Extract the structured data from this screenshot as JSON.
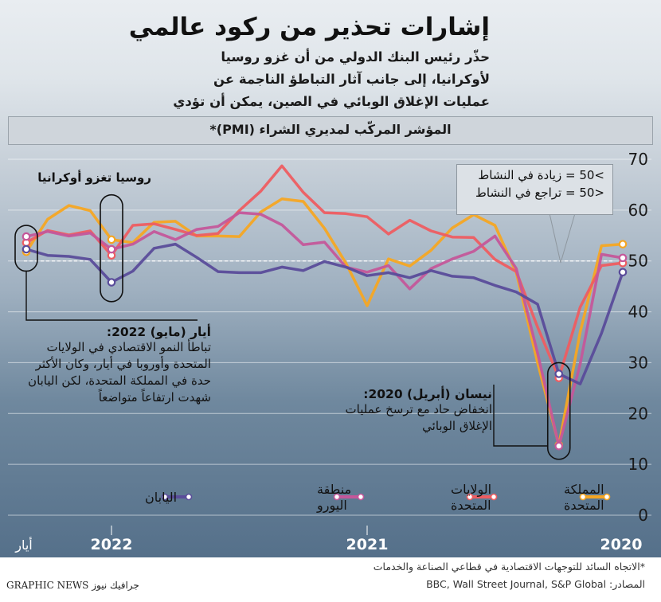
{
  "title": "إشارات تحذير من ركود عالمي",
  "subtitle": "حذّر رئيس البنك الدولي من أن غزو روسيا لأوكرانيا، إلى جانب آثار التباطؤ الناجمة عن عمليات الإغلاق الوبائي في الصين، يمكن أن تؤدي إلى ركود عالمي",
  "band_label": "المؤشر المركّب لمديري الشراء (PMI)*",
  "threshold_legend": {
    "above": ">50 = زيادة في النشاط",
    "below": "<50 = تراجع في النشاط"
  },
  "annotations": {
    "russia": "روسيا تغزو أوكرانيا",
    "may_title": "أيار (مايو) 2022:",
    "may_body": "تباطأ النمو الاقتصادي في الولايات المتحدة وأوروبا في أيار، وكان الأكثر حدة في المملكة المتحدة، لكن اليابان شهدت ارتفاعاً متواضعاً",
    "april_title": "نيسان (أبريل) 2020:",
    "april_body": "انخفاض حاد مع ترسخ عمليات الإغلاق الوبائي"
  },
  "footnote": "*الاتجاه السائد للتوجهات الاقتصادية في قطاعي الصناعة والخدمات",
  "sources": "المصادر: BBC, Wall Street Journal, S&P Global",
  "credit": "GRAPHIC NEWS جرافيك نيوز",
  "chart_data": {
    "type": "line",
    "x_direction": "right-to-left",
    "months_before_may_2022": [
      0,
      1,
      2,
      3,
      4,
      5,
      6,
      7,
      8,
      9,
      10,
      11,
      12,
      13,
      14,
      15,
      16,
      17,
      18,
      19,
      20,
      21,
      22,
      23,
      24,
      25,
      26,
      27,
      28
    ],
    "xticks": [
      {
        "label": "أيار",
        "at": 0
      },
      {
        "label": "2022",
        "at": 4
      },
      {
        "label": "2021",
        "at": 16
      },
      {
        "label": "2020",
        "at": 28
      }
    ],
    "ylim": [
      0,
      70
    ],
    "yticks": [
      0,
      10,
      20,
      30,
      40,
      50,
      60,
      70
    ],
    "reference_line": 50,
    "series": [
      {
        "name": "المملكة المتحدة",
        "color": "#f5a623",
        "values": [
          51.8,
          58.2,
          60.9,
          59.9,
          54.2,
          53.6,
          57.6,
          57.8,
          54.9,
          54.9,
          54.8,
          59.6,
          62.2,
          61.7,
          56.4,
          49.6,
          41.2,
          50.4,
          49.0,
          52.1,
          56.5,
          59.1,
          57.0,
          47.7,
          30.0,
          13.8,
          36.0,
          53.0,
          53.3
        ]
      },
      {
        "name": "الولايات المتحدة",
        "color": "#ee5d61",
        "values": [
          53.6,
          56.0,
          55.1,
          55.9,
          51.1,
          57.0,
          57.3,
          56.2,
          55.0,
          55.4,
          59.9,
          63.7,
          68.7,
          63.5,
          59.5,
          59.3,
          58.7,
          55.3,
          58.0,
          55.9,
          54.7,
          54.6,
          50.3,
          47.9,
          37.0,
          27.0,
          40.9,
          49.1,
          49.6
        ]
      },
      {
        "name": "منطقة اليورو",
        "color": "#c4579a",
        "values": [
          54.8,
          55.8,
          54.9,
          55.5,
          52.3,
          53.3,
          55.8,
          54.2,
          56.2,
          56.8,
          59.5,
          59.2,
          57.1,
          53.2,
          53.7,
          48.8,
          47.8,
          49.1,
          44.5,
          48.5,
          50.4,
          51.9,
          54.9,
          48.5,
          31.9,
          13.6,
          29.7,
          51.3,
          50.6
        ]
      },
      {
        "name": "اليابان",
        "color": "#5a4c9a",
        "values": [
          52.3,
          51.1,
          50.9,
          50.3,
          45.8,
          48.0,
          52.5,
          53.3,
          50.7,
          47.9,
          47.7,
          47.7,
          48.8,
          48.1,
          49.9,
          48.8,
          47.1,
          47.7,
          46.7,
          48.1,
          47.0,
          46.7,
          45.2,
          43.9,
          41.5,
          27.8,
          25.8,
          35.8,
          47.8
        ]
      }
    ]
  }
}
